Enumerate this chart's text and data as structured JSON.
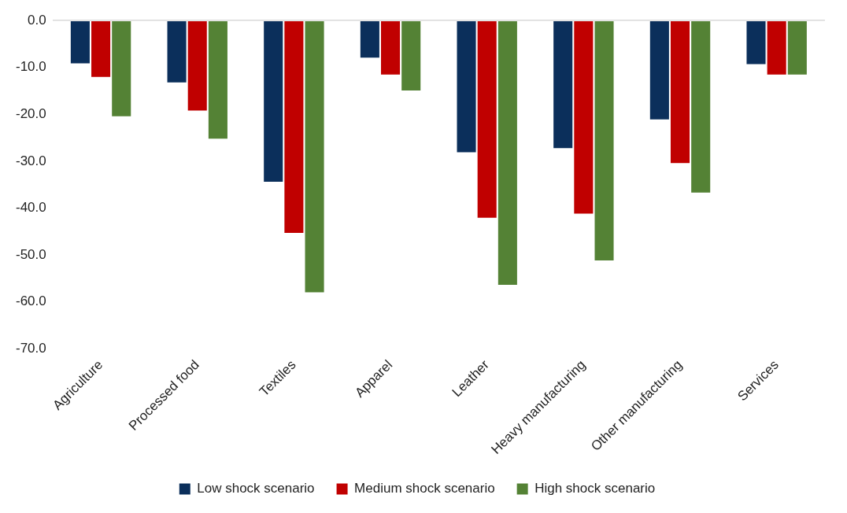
{
  "chart_data": {
    "type": "bar",
    "categories": [
      "Agriculture",
      "Processed food",
      "Textiles",
      "Apparel",
      "Leather",
      "Heavy manufacturing",
      "Other manufacturing",
      "Services"
    ],
    "series": [
      {
        "name": "Low shock scenario",
        "color": "#0b2f5b",
        "values": [
          -9.1,
          -13.2,
          -34.4,
          -7.9,
          -28.1,
          -27.2,
          -21.1,
          -9.3
        ]
      },
      {
        "name": "Medium shock scenario",
        "color": "#c00000",
        "values": [
          -12.0,
          -19.2,
          -45.3,
          -11.5,
          -42.1,
          -41.2,
          -30.4,
          -11.5
        ]
      },
      {
        "name": "High shock scenario",
        "color": "#548235",
        "values": [
          -20.4,
          -25.2,
          -58.0,
          -14.9,
          -56.4,
          -51.2,
          -36.7,
          -11.5
        ]
      }
    ],
    "ylim": [
      -70,
      0
    ],
    "yticks": [
      {
        "value": 0,
        "label": "0.0"
      },
      {
        "value": -10,
        "label": "-10.0"
      },
      {
        "value": -20,
        "label": "-20.0"
      },
      {
        "value": -30,
        "label": "-30.0"
      },
      {
        "value": -40,
        "label": "-40.0"
      },
      {
        "value": -50,
        "label": "-50.0"
      },
      {
        "value": -60,
        "label": "-60.0"
      },
      {
        "value": -70,
        "label": "-70.0"
      }
    ],
    "grid": false,
    "legend": "bottom"
  }
}
